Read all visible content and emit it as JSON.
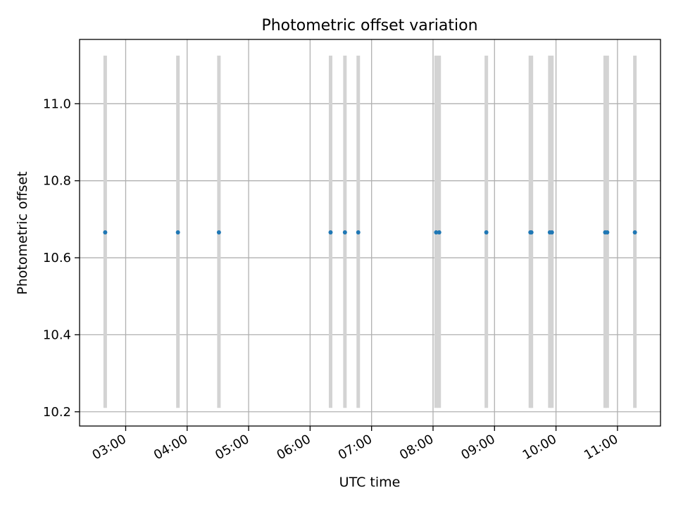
{
  "chart_data": {
    "type": "scatter",
    "title": "Photometric offset variation",
    "xlabel": "UTC time",
    "ylabel": "Photometric offset",
    "x_axis_kind": "time (HH:MM)",
    "xlim": [
      "02:15",
      "11:42"
    ],
    "ylim": [
      10.163,
      11.167
    ],
    "x_ticks": [
      "03:00",
      "04:00",
      "05:00",
      "06:00",
      "07:00",
      "08:00",
      "09:00",
      "10:00",
      "11:00"
    ],
    "y_ticks": [
      10.2,
      10.4,
      10.6,
      10.8,
      11.0
    ],
    "y_tick_labels": [
      "10.2",
      "10.4",
      "10.6",
      "10.8",
      "11.0"
    ],
    "grid": true,
    "error_bar_range": [
      10.21,
      11.125
    ],
    "points": [
      {
        "x": "02:40",
        "y": 10.666
      },
      {
        "x": "03:51",
        "y": 10.666
      },
      {
        "x": "04:31",
        "y": 10.666
      },
      {
        "x": "06:20",
        "y": 10.666
      },
      {
        "x": "06:34",
        "y": 10.666
      },
      {
        "x": "06:47",
        "y": 10.666
      },
      {
        "x": "08:03",
        "y": 10.666
      },
      {
        "x": "08:06",
        "y": 10.666
      },
      {
        "x": "08:52",
        "y": 10.666
      },
      {
        "x": "09:35",
        "y": 10.666
      },
      {
        "x": "09:36",
        "y": 10.666
      },
      {
        "x": "09:54",
        "y": 10.666
      },
      {
        "x": "09:56",
        "y": 10.666
      },
      {
        "x": "10:48",
        "y": 10.666
      },
      {
        "x": "10:50",
        "y": 10.666
      },
      {
        "x": "11:17",
        "y": 10.666
      }
    ],
    "colors": {
      "points": "#1f77b4",
      "error_bars": "#d3d3d3",
      "grid": "#b0b0b0",
      "axes": "#000000"
    }
  }
}
